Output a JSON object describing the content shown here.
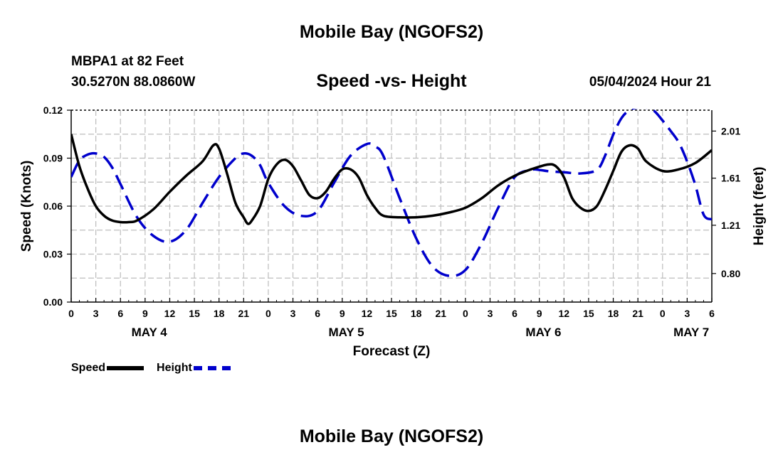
{
  "header": {
    "title": "Mobile Bay (NGOFS2)",
    "station": "MBPA1 at 82 Feet",
    "coords": "30.5270N  88.0860W",
    "subtitle": "Speed -vs- Height",
    "timestamp": "05/04/2024 Hour 21"
  },
  "footer": {
    "title": "Mobile Bay (NGOFS2)"
  },
  "legend": {
    "speed_label": "Speed",
    "height_label": "Height"
  },
  "chart_data": {
    "type": "line",
    "title": "Speed -vs- Height",
    "xlabel": "Forecast (Z)",
    "ylabel_left": "Speed (Knots)",
    "ylabel_right": "Height (feet)",
    "x_hours_range": [
      0,
      78
    ],
    "x_tick_labels": [
      "0",
      "3",
      "6",
      "9",
      "12",
      "15",
      "18",
      "21",
      "0",
      "3",
      "6",
      "9",
      "12",
      "15",
      "18",
      "21",
      "0",
      "3",
      "6",
      "9",
      "12",
      "15",
      "18",
      "21",
      "0",
      "3",
      "6"
    ],
    "date_labels": [
      {
        "label": "MAY 4",
        "hour": 9.5
      },
      {
        "label": "MAY 5",
        "hour": 33.5
      },
      {
        "label": "MAY 6",
        "hour": 57.5
      },
      {
        "label": "MAY 7",
        "hour": 75.5
      }
    ],
    "y_left": {
      "range": [
        0,
        0.12
      ],
      "ticks": [
        0.0,
        0.03,
        0.06,
        0.09,
        0.12
      ],
      "tick_labels": [
        "0.00",
        "0.03",
        "0.06",
        "0.09",
        "0.12"
      ]
    },
    "y_right": {
      "range": [
        0.5575,
        2.1875
      ],
      "ticks": [
        0.8,
        1.21,
        1.61,
        2.01
      ],
      "tick_labels": [
        "0.80",
        "1.21",
        "1.61",
        "2.01"
      ]
    },
    "series": [
      {
        "name": "Speed",
        "axis": "left",
        "color": "#000000",
        "style": "solid",
        "x": [
          0,
          1,
          2,
          3,
          4,
          5,
          6,
          7,
          8,
          10,
          12,
          14,
          16,
          17.3,
          18,
          19,
          20,
          21,
          21.5,
          22,
          23,
          24,
          25,
          26,
          27,
          28,
          29,
          30,
          31,
          32,
          33,
          34,
          35,
          36,
          37,
          38,
          40,
          42,
          44,
          46,
          48,
          50,
          52,
          54,
          56,
          58,
          59,
          60,
          61,
          62,
          63,
          64,
          65,
          66,
          67,
          68,
          69,
          70,
          72,
          74,
          76,
          78
        ],
        "values": [
          0.105,
          0.085,
          0.071,
          0.06,
          0.054,
          0.051,
          0.05,
          0.05,
          0.051,
          0.058,
          0.069,
          0.079,
          0.088,
          0.098,
          0.096,
          0.08,
          0.062,
          0.053,
          0.049,
          0.051,
          0.06,
          0.077,
          0.086,
          0.089,
          0.085,
          0.076,
          0.067,
          0.065,
          0.069,
          0.077,
          0.083,
          0.083,
          0.078,
          0.067,
          0.059,
          0.054,
          0.053,
          0.053,
          0.054,
          0.056,
          0.059,
          0.065,
          0.073,
          0.079,
          0.083,
          0.086,
          0.085,
          0.078,
          0.065,
          0.059,
          0.057,
          0.06,
          0.07,
          0.082,
          0.094,
          0.098,
          0.096,
          0.088,
          0.082,
          0.083,
          0.087,
          0.095
        ]
      },
      {
        "name": "Height",
        "axis": "right",
        "color": "#0000cc",
        "style": "dashed",
        "x": [
          0,
          1,
          2,
          3,
          4,
          5,
          6,
          8,
          10,
          12,
          14,
          16,
          18,
          20,
          21,
          22,
          23,
          24,
          26,
          28,
          30,
          32,
          34,
          36,
          37,
          38,
          40,
          42,
          44,
          46,
          48,
          50,
          52,
          54,
          56,
          57,
          58,
          60,
          62,
          64,
          65,
          66,
          67,
          68,
          69,
          70,
          71,
          72,
          73,
          74,
          75,
          76,
          77,
          78
        ],
        "values": [
          1.62,
          1.76,
          1.81,
          1.82,
          1.79,
          1.7,
          1.56,
          1.28,
          1.12,
          1.07,
          1.17,
          1.4,
          1.62,
          1.78,
          1.82,
          1.8,
          1.72,
          1.57,
          1.37,
          1.29,
          1.33,
          1.57,
          1.8,
          1.9,
          1.88,
          1.8,
          1.44,
          1.1,
          0.86,
          0.78,
          0.83,
          1.06,
          1.36,
          1.62,
          1.68,
          1.68,
          1.67,
          1.66,
          1.65,
          1.68,
          1.8,
          1.98,
          2.12,
          2.19,
          2.21,
          2.21,
          2.18,
          2.1,
          2.01,
          1.91,
          1.75,
          1.55,
          1.3,
          1.26
        ]
      }
    ]
  }
}
